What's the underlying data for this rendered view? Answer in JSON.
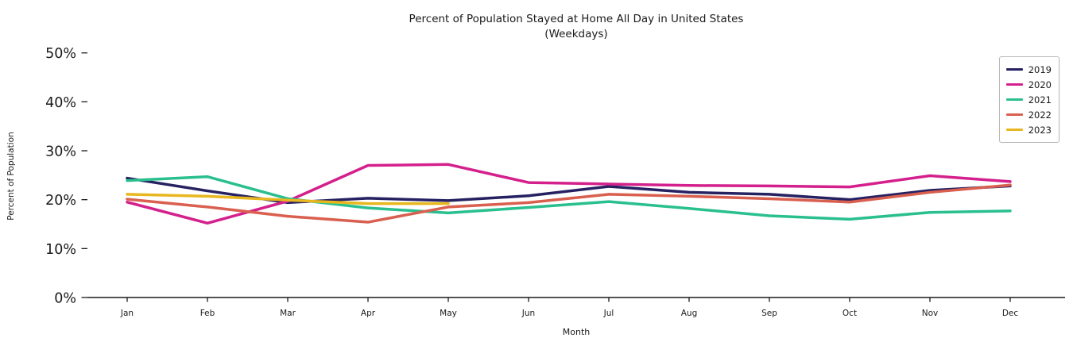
{
  "title": {
    "line1": "Percent of Population Stayed at Home All Day in United States",
    "line2": "(Weekdays)"
  },
  "axes": {
    "x_label": "Month",
    "y_label": "Percent of Population"
  },
  "colors": {
    "axis_text": "#1a1a1a",
    "spine": "#1a1a1a",
    "legend_border": "#b8b8b8",
    "background": "#ffffff"
  },
  "chart_data": {
    "type": "line",
    "title": "Percent of Population Stayed at Home All Day in United States",
    "subtitle": "(Weekdays)",
    "xlabel": "Month",
    "ylabel": "Percent of Population",
    "categories": [
      "Jan",
      "Feb",
      "Mar",
      "Apr",
      "May",
      "Jun",
      "Jul",
      "Aug",
      "Sep",
      "Oct",
      "Nov",
      "Dec"
    ],
    "y_tick_values": [
      0,
      10,
      20,
      30,
      40,
      50
    ],
    "y_tick_suffix": "%",
    "ylim": [
      0,
      52
    ],
    "grid": false,
    "legend_position": "upper right",
    "line_width": 3.5,
    "series": [
      {
        "name": "2019",
        "color": "#262262",
        "values": [
          24.4,
          21.8,
          19.4,
          20.3,
          19.8,
          20.8,
          22.7,
          21.5,
          21.1,
          20.0,
          21.9,
          22.8
        ]
      },
      {
        "name": "2020",
        "color": "#d4208c",
        "values": [
          19.5,
          15.2,
          19.7,
          27.0,
          27.2,
          23.5,
          23.2,
          22.9,
          22.8,
          22.6,
          24.9,
          23.7
        ]
      },
      {
        "name": "2021",
        "color": "#2abf8f",
        "values": [
          23.9,
          24.7,
          20.2,
          18.3,
          17.3,
          18.4,
          19.6,
          18.2,
          16.7,
          16.0,
          17.4,
          17.7
        ]
      },
      {
        "name": "2022",
        "color": "#d95f4f",
        "values": [
          20.1,
          18.5,
          16.6,
          15.4,
          18.5,
          19.4,
          21.1,
          20.7,
          20.2,
          19.5,
          21.5,
          23.0
        ]
      },
      {
        "name": "2023",
        "color": "#e8b71e",
        "values": [
          21.1,
          20.7,
          19.9,
          19.2,
          19.2,
          null,
          null,
          null,
          null,
          null,
          null,
          null
        ]
      }
    ]
  }
}
